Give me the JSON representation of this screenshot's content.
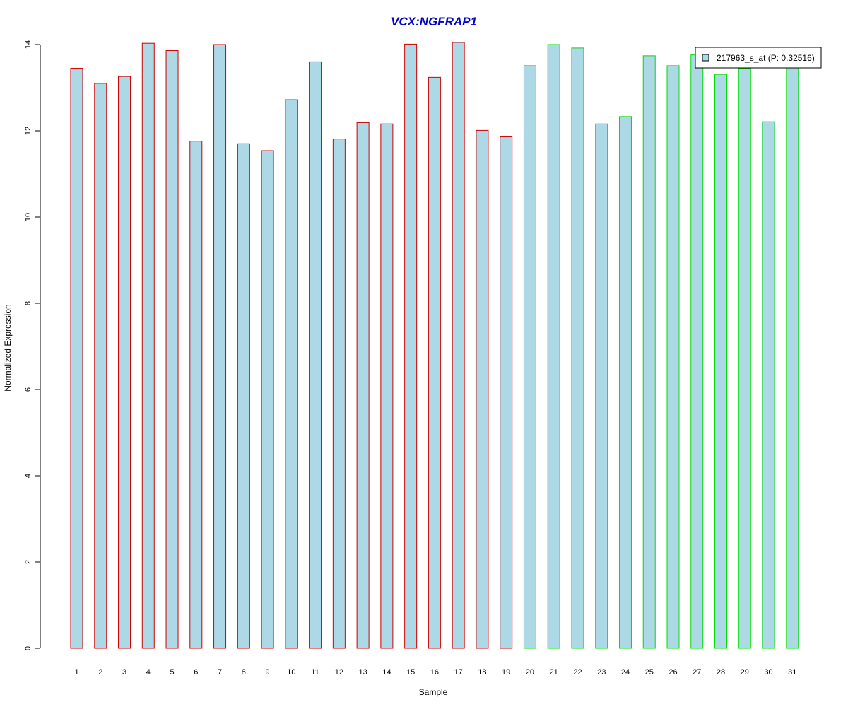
{
  "chart_data": {
    "type": "bar",
    "title": "VCX:NGFRAP1",
    "xlabel": "Sample",
    "ylabel": "Normalized Expression",
    "ylim": [
      0,
      14
    ],
    "yticks": [
      0,
      2,
      4,
      6,
      8,
      10,
      12,
      14
    ],
    "grid": false,
    "legend_position": "top-right",
    "categories": [
      "1",
      "2",
      "3",
      "4",
      "5",
      "6",
      "7",
      "8",
      "9",
      "10",
      "11",
      "12",
      "13",
      "14",
      "15",
      "16",
      "17",
      "18",
      "19",
      "20",
      "21",
      "22",
      "23",
      "24",
      "25",
      "26",
      "27",
      "28",
      "29",
      "30",
      "31"
    ],
    "series": [
      {
        "name": "217963_s_at (P: 0.32516)",
        "values": [
          13.45,
          13.1,
          13.26,
          14.03,
          13.86,
          11.76,
          14.0,
          11.7,
          11.54,
          12.72,
          13.6,
          11.81,
          12.19,
          12.16,
          14.01,
          13.24,
          14.05,
          12.01,
          11.86,
          13.51,
          14.0,
          13.92,
          12.16,
          12.33,
          13.74,
          13.51,
          13.76,
          13.31,
          13.45,
          12.21,
          13.49
        ]
      }
    ],
    "groups": [
      {
        "from": 1,
        "to": 19,
        "border_color": "#cc0000"
      },
      {
        "from": 20,
        "to": 31,
        "border_color": "#00dd00"
      }
    ],
    "colors": {
      "fill": "#add8e6",
      "title": "#0000cc",
      "axis": "#000000",
      "legend_border": "#000000"
    }
  }
}
